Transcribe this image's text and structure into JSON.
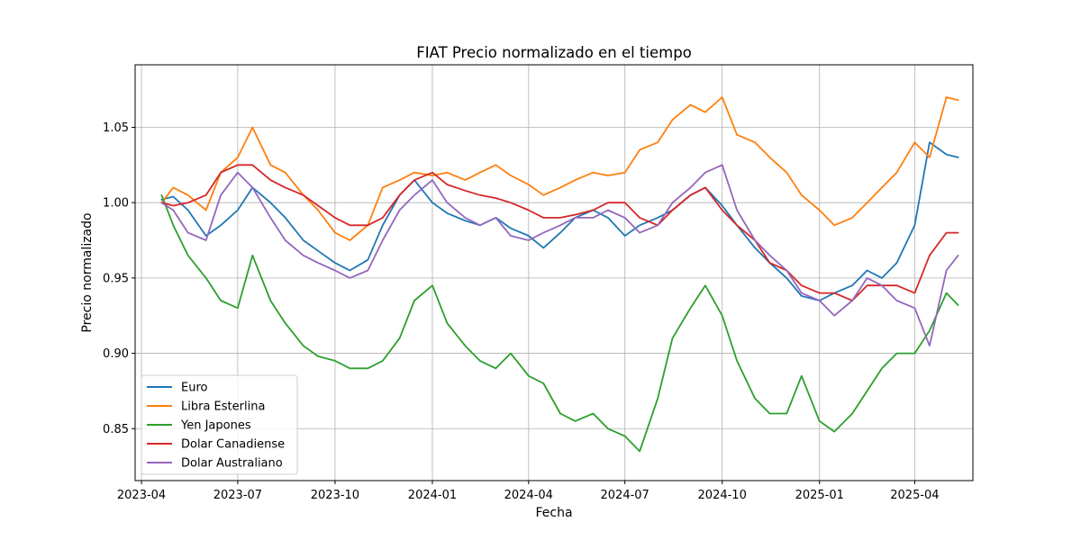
{
  "chart_data": {
    "type": "line",
    "title": "FIAT Precio normalizado en el tiempo",
    "xlabel": "Fecha",
    "ylabel": "Precio normalizado",
    "xlim": [
      "2023-03-26",
      "2025-05-26"
    ],
    "ylim": [
      0.8155,
      1.0915
    ],
    "grid": true,
    "legend_position": "lower-left",
    "x_ticks": [
      "2023-04",
      "2023-07",
      "2023-10",
      "2024-01",
      "2024-04",
      "2024-07",
      "2024-10",
      "2025-01",
      "2025-04"
    ],
    "y_ticks": [
      0.85,
      0.9,
      0.95,
      1.0,
      1.05
    ],
    "y_tick_labels": [
      "0.85",
      "0.90",
      "0.95",
      "1.00",
      "1.05"
    ],
    "x": [
      "2023-04-20",
      "2023-05-01",
      "2023-05-15",
      "2023-06-01",
      "2023-06-15",
      "2023-07-01",
      "2023-07-15",
      "2023-08-01",
      "2023-08-15",
      "2023-09-01",
      "2023-09-15",
      "2023-10-01",
      "2023-10-15",
      "2023-11-01",
      "2023-11-15",
      "2023-12-01",
      "2023-12-15",
      "2024-01-01",
      "2024-01-15",
      "2024-02-01",
      "2024-02-15",
      "2024-03-01",
      "2024-03-15",
      "2024-04-01",
      "2024-04-15",
      "2024-05-01",
      "2024-05-15",
      "2024-06-01",
      "2024-06-15",
      "2024-07-01",
      "2024-07-15",
      "2024-08-01",
      "2024-08-15",
      "2024-09-01",
      "2024-09-15",
      "2024-10-01",
      "2024-10-15",
      "2024-11-01",
      "2024-11-15",
      "2024-12-01",
      "2024-12-15",
      "2025-01-01",
      "2025-01-15",
      "2025-02-01",
      "2025-02-15",
      "2025-03-01",
      "2025-03-15",
      "2025-04-01",
      "2025-04-15",
      "2025-05-01",
      "2025-05-12"
    ],
    "series": [
      {
        "name": "Euro",
        "color": "#1f77b4",
        "values": [
          1.002,
          1.004,
          0.995,
          0.978,
          0.985,
          0.995,
          1.01,
          1.0,
          0.99,
          0.975,
          0.968,
          0.96,
          0.955,
          0.962,
          0.985,
          1.005,
          1.015,
          1.0,
          0.993,
          0.988,
          0.985,
          0.99,
          0.983,
          0.978,
          0.97,
          0.98,
          0.99,
          0.995,
          0.99,
          0.978,
          0.985,
          0.99,
          0.995,
          1.005,
          1.01,
          0.998,
          0.985,
          0.97,
          0.96,
          0.95,
          0.938,
          0.935,
          0.94,
          0.945,
          0.955,
          0.95,
          0.96,
          0.985,
          1.04,
          1.032,
          1.03
        ]
      },
      {
        "name": "Libra Esterlina",
        "color": "#ff7f0e",
        "values": [
          1.0,
          1.01,
          1.005,
          0.995,
          1.02,
          1.03,
          1.05,
          1.025,
          1.02,
          1.005,
          0.995,
          0.98,
          0.975,
          0.985,
          1.01,
          1.015,
          1.02,
          1.018,
          1.02,
          1.015,
          1.02,
          1.025,
          1.018,
          1.012,
          1.005,
          1.01,
          1.015,
          1.02,
          1.018,
          1.02,
          1.035,
          1.04,
          1.055,
          1.065,
          1.06,
          1.07,
          1.045,
          1.04,
          1.03,
          1.02,
          1.005,
          0.995,
          0.985,
          0.99,
          1.0,
          1.01,
          1.02,
          1.04,
          1.03,
          1.07,
          1.068
        ]
      },
      {
        "name": "Yen Japones",
        "color": "#2ca02c",
        "values": [
          1.005,
          0.985,
          0.965,
          0.95,
          0.935,
          0.93,
          0.965,
          0.935,
          0.92,
          0.905,
          0.898,
          0.895,
          0.89,
          0.89,
          0.895,
          0.91,
          0.935,
          0.945,
          0.92,
          0.905,
          0.895,
          0.89,
          0.9,
          0.885,
          0.88,
          0.86,
          0.855,
          0.86,
          0.85,
          0.845,
          0.835,
          0.87,
          0.91,
          0.93,
          0.945,
          0.925,
          0.895,
          0.87,
          0.86,
          0.86,
          0.885,
          0.855,
          0.848,
          0.86,
          0.875,
          0.89,
          0.9,
          0.9,
          0.915,
          0.94,
          0.932
        ]
      },
      {
        "name": "Dolar Canadiense",
        "color": "#d62728",
        "values": [
          1.0,
          0.998,
          1.0,
          1.005,
          1.02,
          1.025,
          1.025,
          1.015,
          1.01,
          1.005,
          0.998,
          0.99,
          0.985,
          0.985,
          0.99,
          1.005,
          1.015,
          1.02,
          1.012,
          1.008,
          1.005,
          1.003,
          1.0,
          0.995,
          0.99,
          0.99,
          0.992,
          0.995,
          1.0,
          1.0,
          0.99,
          0.985,
          0.995,
          1.005,
          1.01,
          0.995,
          0.985,
          0.975,
          0.96,
          0.955,
          0.945,
          0.94,
          0.94,
          0.935,
          0.945,
          0.945,
          0.945,
          0.94,
          0.965,
          0.98,
          0.98
        ]
      },
      {
        "name": "Dolar Australiano",
        "color": "#9467bd",
        "values": [
          1.0,
          0.995,
          0.98,
          0.975,
          1.005,
          1.02,
          1.01,
          0.99,
          0.975,
          0.965,
          0.96,
          0.955,
          0.95,
          0.955,
          0.975,
          0.995,
          1.005,
          1.015,
          1.0,
          0.99,
          0.985,
          0.99,
          0.978,
          0.975,
          0.98,
          0.985,
          0.99,
          0.99,
          0.995,
          0.99,
          0.98,
          0.985,
          1.0,
          1.01,
          1.02,
          1.025,
          0.995,
          0.975,
          0.965,
          0.955,
          0.94,
          0.935,
          0.925,
          0.935,
          0.95,
          0.945,
          0.935,
          0.93,
          0.905,
          0.955,
          0.965
        ]
      }
    ]
  }
}
